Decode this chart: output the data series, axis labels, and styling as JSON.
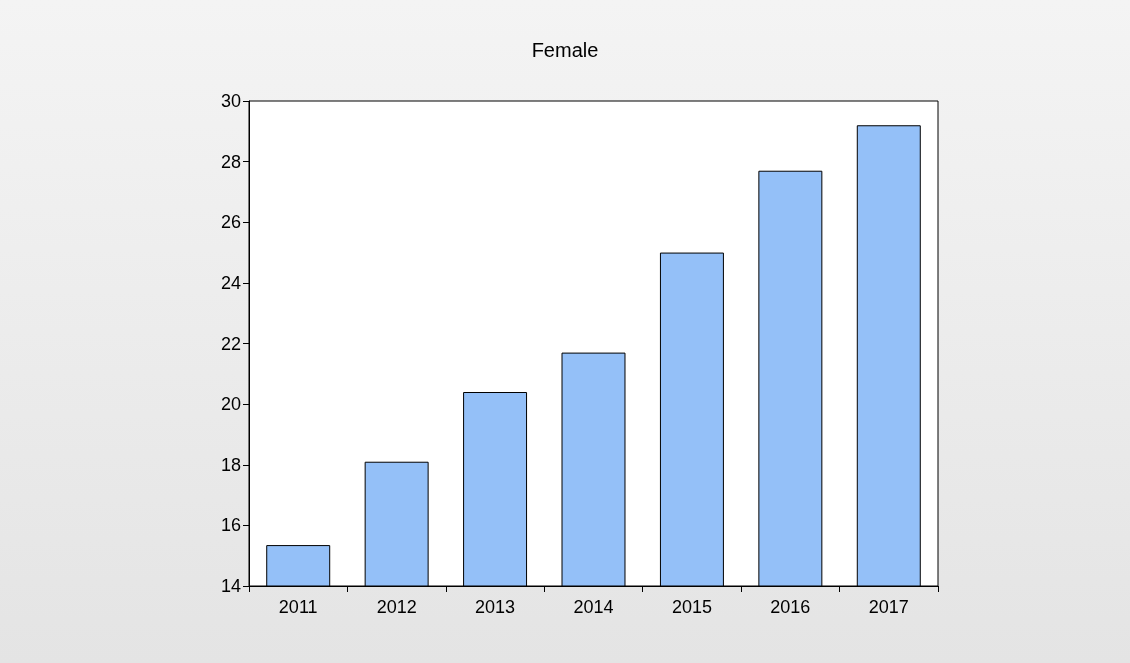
{
  "chart_data": {
    "type": "bar",
    "title": "Female",
    "categories": [
      "2011",
      "2012",
      "2013",
      "2014",
      "2015",
      "2016",
      "2017"
    ],
    "values": [
      15.35,
      18.1,
      20.4,
      21.7,
      25.0,
      27.7,
      29.2
    ],
    "color": "#94c0f8",
    "ylim": [
      14,
      30
    ],
    "yticks": [
      14,
      16,
      18,
      20,
      22,
      24,
      26,
      28,
      30
    ],
    "grid": false
  }
}
